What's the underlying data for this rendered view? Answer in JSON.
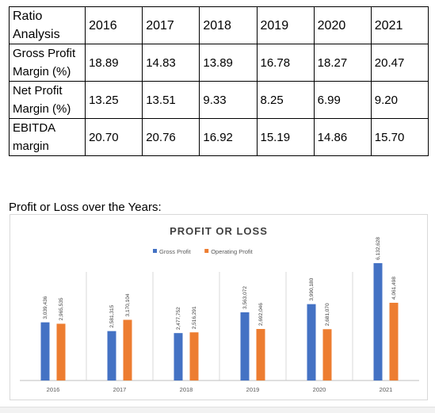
{
  "table": {
    "header": [
      "Ratio Analysis",
      "2016",
      "2017",
      "2018",
      "2019",
      "2020",
      "2021"
    ],
    "rows": [
      {
        "label": "Gross Profit Margin (%)",
        "values": [
          "18.89",
          "14.83",
          "13.89",
          "16.78",
          "18.27",
          "20.47"
        ]
      },
      {
        "label": "Net Profit Margin (%)",
        "values": [
          "13.25",
          "13.51",
          "9.33",
          "8.25",
          "6.99",
          "9.20"
        ]
      },
      {
        "label": "EBITDA margin",
        "values": [
          "20.70",
          "20.76",
          "16.92",
          "15.19",
          "14.86",
          "15.70"
        ]
      }
    ]
  },
  "caption": "Profit or Loss over the Years:",
  "colors": {
    "gross": "#4472c4",
    "operating": "#ed7d31",
    "grid": "#d9d9d9"
  },
  "chart_data": {
    "type": "bar",
    "title": "PROFIT OR LOSS",
    "categories": [
      "2016",
      "2017",
      "2018",
      "2019",
      "2020",
      "2021"
    ],
    "series": [
      {
        "name": "Gross Profit",
        "values": [
          3039436,
          2581315,
          2477752,
          3563072,
          3990180,
          6132628
        ],
        "labels": [
          "3,039,436",
          "2,581,315",
          "2,477,752",
          "3,563,072",
          "3,990,180",
          "6,132,628"
        ]
      },
      {
        "name": "Operating Profit",
        "values": [
          2965535,
          3170104,
          2516291,
          2692046,
          2681070,
          4061498
        ],
        "labels": [
          "2,965,535",
          "3,170,104",
          "2,516,291",
          "2,692,046",
          "2,681,070",
          "4,061,498"
        ]
      }
    ],
    "legend": "top-center",
    "ylim": [
      0,
      7000000
    ],
    "grid": false
  }
}
